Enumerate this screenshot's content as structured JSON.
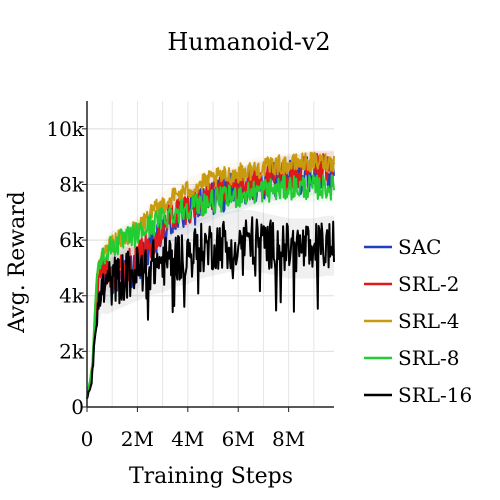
{
  "chart_data": {
    "type": "line",
    "title": "Humanoid-v2",
    "xlabel": "Training Steps",
    "ylabel": "Avg. Reward",
    "xlim": [
      0,
      9800000
    ],
    "ylim": [
      0,
      11000
    ],
    "x_ticks": [
      0,
      2000000,
      4000000,
      6000000,
      8000000
    ],
    "x_tick_labels": [
      "0",
      "2M",
      "4M",
      "6M",
      "8M"
    ],
    "y_ticks": [
      0,
      2000,
      4000,
      6000,
      8000,
      10000
    ],
    "y_tick_labels": [
      "0",
      "2k",
      "4k",
      "6k",
      "8k",
      "10k"
    ],
    "grid": true,
    "legend_position": "right",
    "series": [
      {
        "name": "SAC",
        "color": "#1f3fbf",
        "x": [
          0,
          200000,
          400000,
          600000,
          800000,
          1000000,
          1500000,
          2000000,
          2500000,
          3000000,
          3500000,
          4000000,
          4500000,
          5000000,
          5500000,
          6000000,
          6500000,
          7000000,
          7500000,
          8000000,
          8500000,
          9000000,
          9500000,
          9800000
        ],
        "y": [
          300,
          1200,
          3800,
          4700,
          4500,
          4600,
          4900,
          5000,
          5600,
          6200,
          6800,
          7000,
          7300,
          7500,
          7700,
          7800,
          8000,
          8100,
          8200,
          8300,
          8300,
          8400,
          8400,
          8400
        ]
      },
      {
        "name": "SRL-2",
        "color": "#e01818",
        "x": [
          0,
          200000,
          400000,
          600000,
          800000,
          1000000,
          1500000,
          2000000,
          2500000,
          3000000,
          3500000,
          4000000,
          4500000,
          5000000,
          5500000,
          6000000,
          6500000,
          7000000,
          7500000,
          8000000,
          8500000,
          9000000,
          9500000,
          9800000
        ],
        "y": [
          300,
          1300,
          4200,
          5000,
          4900,
          4800,
          5000,
          5300,
          5900,
          6500,
          7000,
          7200,
          7400,
          7600,
          7800,
          7900,
          8000,
          8100,
          8200,
          8300,
          8400,
          8500,
          8500,
          8500
        ]
      },
      {
        "name": "SRL-4",
        "color": "#c89a10",
        "x": [
          0,
          200000,
          400000,
          600000,
          800000,
          1000000,
          1500000,
          2000000,
          2500000,
          3000000,
          3500000,
          4000000,
          4500000,
          5000000,
          5500000,
          6000000,
          6500000,
          7000000,
          7500000,
          8000000,
          8500000,
          9000000,
          9500000,
          9800000
        ],
        "y": [
          300,
          1400,
          4800,
          5400,
          5700,
          5900,
          6100,
          6400,
          6900,
          7300,
          7600,
          7800,
          8000,
          8200,
          8300,
          8400,
          8500,
          8600,
          8700,
          8700,
          8800,
          8800,
          8800,
          8800
        ]
      },
      {
        "name": "SRL-8",
        "color": "#22cc33",
        "x": [
          0,
          200000,
          400000,
          600000,
          800000,
          1000000,
          1500000,
          2000000,
          2500000,
          3000000,
          3500000,
          4000000,
          4500000,
          5000000,
          5500000,
          6000000,
          6500000,
          7000000,
          7500000,
          8000000,
          8500000,
          9000000,
          9500000,
          9800000
        ],
        "y": [
          300,
          1400,
          4900,
          5400,
          5600,
          5800,
          6000,
          6200,
          6500,
          6800,
          7000,
          7200,
          7300,
          7400,
          7500,
          7600,
          7700,
          7800,
          7800,
          7900,
          7900,
          7900,
          7900,
          7900
        ]
      },
      {
        "name": "SRL-16",
        "color": "#000000",
        "x": [
          0,
          200000,
          400000,
          600000,
          800000,
          1000000,
          1500000,
          2000000,
          2500000,
          3000000,
          3500000,
          4000000,
          4500000,
          5000000,
          5500000,
          6000000,
          6500000,
          7000000,
          7500000,
          8000000,
          8500000,
          9000000,
          9500000,
          9800000
        ],
        "y": [
          300,
          1000,
          3400,
          4200,
          4400,
          4500,
          4700,
          4900,
          5100,
          5200,
          5400,
          5500,
          5700,
          5800,
          5900,
          6000,
          6000,
          5900,
          5800,
          5700,
          5700,
          5700,
          5800,
          5800
        ]
      }
    ]
  }
}
